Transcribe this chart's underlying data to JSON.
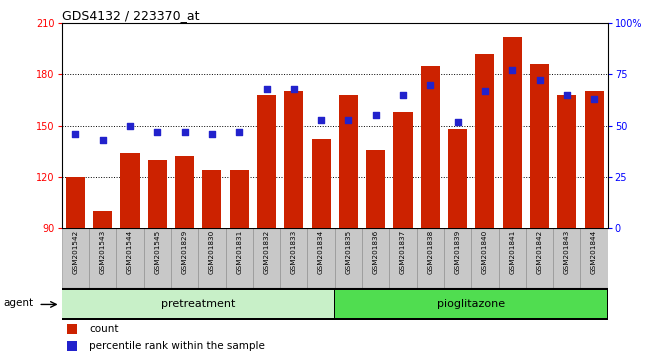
{
  "title": "GDS4132 / 223370_at",
  "samples": [
    "GSM201542",
    "GSM201543",
    "GSM201544",
    "GSM201545",
    "GSM201829",
    "GSM201830",
    "GSM201831",
    "GSM201832",
    "GSM201833",
    "GSM201834",
    "GSM201835",
    "GSM201836",
    "GSM201837",
    "GSM201838",
    "GSM201839",
    "GSM201840",
    "GSM201841",
    "GSM201842",
    "GSM201843",
    "GSM201844"
  ],
  "bar_values": [
    120,
    100,
    134,
    130,
    132,
    124,
    124,
    168,
    170,
    142,
    168,
    136,
    158,
    185,
    148,
    192,
    202,
    186,
    168,
    170
  ],
  "pct_values": [
    46,
    43,
    50,
    47,
    47,
    46,
    47,
    68,
    68,
    53,
    53,
    55,
    65,
    70,
    52,
    67,
    77,
    72,
    65,
    63
  ],
  "pretreatment_count": 10,
  "ylim_left": [
    90,
    210
  ],
  "ylim_right": [
    0,
    100
  ],
  "yticks_left": [
    90,
    120,
    150,
    180,
    210
  ],
  "yticks_right": [
    0,
    25,
    50,
    75,
    100
  ],
  "bar_color": "#cc2200",
  "dot_color": "#2222cc",
  "title_fontsize": 9,
  "axis_fontsize": 7,
  "label_fontsize": 7.5,
  "legend_fontsize": 7.5,
  "agent_label": "agent",
  "group_label_pre": "pretreatment",
  "group_label_pio": "pioglitazone",
  "legend_count": "count",
  "legend_pct": "percentile rank within the sample",
  "group_color_pre": "#c8f0c8",
  "group_color_pio": "#50dd50"
}
